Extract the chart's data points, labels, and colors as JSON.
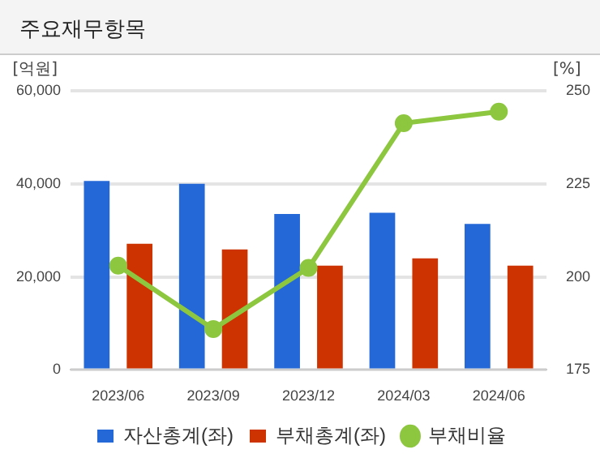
{
  "chart_data": {
    "type": "bar",
    "title": "주요재무항목",
    "ylabel": "[억원]",
    "y2label": "[%]",
    "categories": [
      "2023/06",
      "2023/09",
      "2023/12",
      "2024/03",
      "2024/06"
    ],
    "series": [
      {
        "name": "자산총계(좌)",
        "color": "#2468d8",
        "values": [
          40600,
          40000,
          33500,
          33800,
          31400
        ]
      },
      {
        "name": "부채총계(좌)",
        "color": "#cc3300",
        "values": [
          27100,
          25900,
          22400,
          24000,
          22400
        ]
      },
      {
        "name": "부채비율",
        "type": "line",
        "axis": "y2",
        "color": "#8dc63f",
        "values": [
          203,
          186,
          202.4,
          241.3,
          244.4
        ]
      }
    ],
    "ylim": [
      0,
      60000
    ],
    "yticks": [
      0,
      {
        "value": 20000,
        "label": "20,000"
      },
      {
        "value": 40000,
        "label": "40,000"
      },
      {
        "value": 60000,
        "label": "60,000"
      }
    ],
    "y2lim": [
      175,
      250
    ],
    "y2ticks": [
      175,
      200,
      225,
      250
    ],
    "grid": "y",
    "legend": "bottom",
    "marker": "circle"
  }
}
